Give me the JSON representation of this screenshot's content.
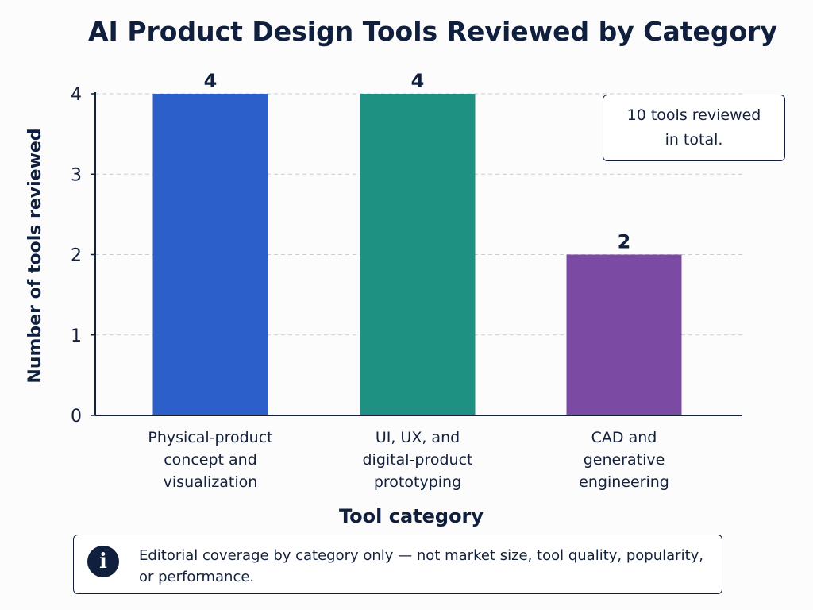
{
  "chart_data": {
    "type": "bar",
    "title": "AI Product Design Tools Reviewed by Category",
    "xlabel": "Tool category",
    "ylabel": "Number of tools reviewed",
    "categories": [
      "Physical-product concept and visualization",
      "UI, UX, and digital-product prototyping",
      "CAD and generative engineering"
    ],
    "category_lines": [
      [
        "Physical-product",
        "concept and",
        "visualization"
      ],
      [
        "UI, UX, and",
        "digital-product",
        "prototyping"
      ],
      [
        "CAD and",
        "generative",
        "engineering"
      ]
    ],
    "values": [
      4,
      4,
      2
    ],
    "data_labels": [
      "4",
      "4",
      "2"
    ],
    "bar_colors": [
      "#2c5fc9",
      "#1f9183",
      "#7b4aa3"
    ],
    "yticks": [
      0,
      1,
      2,
      3,
      4
    ],
    "ylim": [
      0,
      4
    ],
    "grid": true,
    "grid_style": "dashed-horizontal"
  },
  "annotation": {
    "text": "10 tools reviewed in total."
  },
  "disclaimer": {
    "icon": "info-icon",
    "icon_glyph": "i",
    "text": "Editorial coverage by category only — not market size, tool quality, popularity, or performance."
  }
}
